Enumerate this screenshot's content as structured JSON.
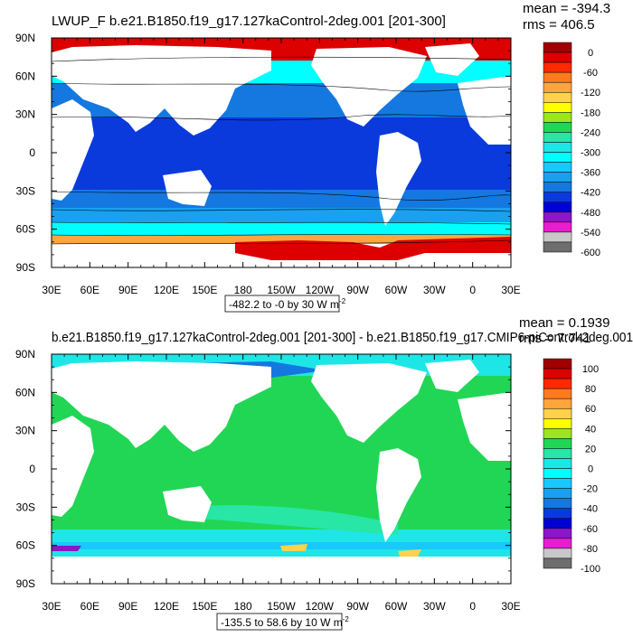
{
  "chart_data": [
    {
      "type": "heatmap",
      "title": "LWUP_F b.e21.B1850.f19_g17.127kaControl-2deg.001 [201-300]",
      "stats": {
        "mean": "mean = -394.3",
        "rms": "rms = 406.5"
      },
      "subtitle": "-482.2 to -0 by 30  W m",
      "superscript": "-2",
      "x_ticks": [
        "30E",
        "60E",
        "90E",
        "120E",
        "150E",
        "180",
        "150W",
        "120W",
        "90W",
        "60W",
        "30W",
        "0",
        "30E"
      ],
      "y_ticks": [
        "90N",
        "60N",
        "30N",
        "0",
        "30S",
        "60S",
        "90S"
      ],
      "xlim": [
        30,
        390
      ],
      "ylim": [
        -90,
        90
      ],
      "colorbar_labels": [
        "0",
        "-60",
        "-120",
        "-180",
        "-240",
        "-300",
        "-360",
        "-420",
        "-480",
        "-540",
        "-600"
      ],
      "colorbar_colors": [
        "#a00000",
        "#dd0000",
        "#ff2a00",
        "#ff7a1e",
        "#ffa53c",
        "#ffd24a",
        "#ffff00",
        "#9be61e",
        "#21d655",
        "#27e6a6",
        "#1ee6e6",
        "#00ffff",
        "#18c8ff",
        "#1aa0f0",
        "#1478e0",
        "#0a3adc",
        "#0000d4",
        "#8c16c8",
        "#e61ed0",
        "#c8c8c8",
        "#6e6e6e"
      ]
    },
    {
      "type": "heatmap",
      "title": "b.e21.B1850.f19_g17.127kaControl-2deg.001 [201-300] - b.e21.B1850.f19_g17.CMIP6-piControl-2deg.001",
      "stats": {
        "mean": "mean = 0.1939",
        "rms": "rms = 7.741"
      },
      "subtitle": "-135.5 to 58.6 by 10  W m",
      "superscript": "-2",
      "x_ticks": [
        "30E",
        "60E",
        "90E",
        "120E",
        "150E",
        "180",
        "150W",
        "120W",
        "90W",
        "60W",
        "30W",
        "0",
        "30E"
      ],
      "y_ticks": [
        "90N",
        "60N",
        "30N",
        "0",
        "30S",
        "60S",
        "90S"
      ],
      "xlim": [
        30,
        390
      ],
      "ylim": [
        -90,
        90
      ],
      "colorbar_labels": [
        "100",
        "80",
        "60",
        "40",
        "20",
        "0",
        "-20",
        "-40",
        "-60",
        "-80",
        "-100"
      ],
      "colorbar_colors": [
        "#a00000",
        "#dd0000",
        "#ff2a00",
        "#ff7a1e",
        "#ffa53c",
        "#ffd24a",
        "#ffff00",
        "#9be61e",
        "#21d655",
        "#27e6a6",
        "#1ee6e6",
        "#00ffff",
        "#18c8ff",
        "#1aa0f0",
        "#1478e0",
        "#0a3adc",
        "#0000d4",
        "#8c16c8",
        "#e61ed0",
        "#c8c8c8",
        "#6e6e6e"
      ]
    }
  ]
}
